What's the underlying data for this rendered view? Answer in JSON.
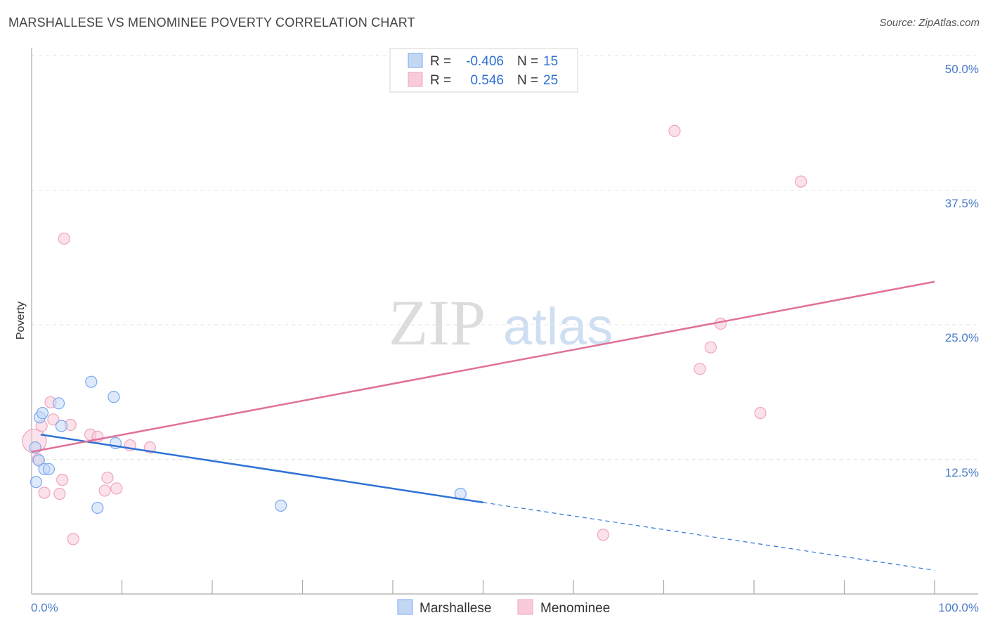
{
  "title": "MARSHALLESE VS MENOMINEE POVERTY CORRELATION CHART",
  "source": "Source: ZipAtlas.com",
  "watermark": {
    "zip": "ZIP",
    "atlas": "atlas"
  },
  "chart_data": {
    "type": "scatter",
    "title": "MARSHALLESE VS MENOMINEE POVERTY CORRELATION CHART",
    "xlabel": "",
    "ylabel": "Poverty",
    "xlim": [
      0,
      100
    ],
    "ylim": [
      0,
      50
    ],
    "x_tick_labels": [
      "0.0%",
      "100.0%"
    ],
    "y_ticks": [
      12.5,
      25.0,
      37.5,
      50.0
    ],
    "y_tick_labels": [
      "12.5%",
      "25.0%",
      "37.5%",
      "50.0%"
    ],
    "grid": true,
    "legend_position": "top-center",
    "series": [
      {
        "name": "Marshallese",
        "color": "#7aaaf0",
        "fill": "#c3d7f5",
        "line_color": "#2f72d6",
        "R": "-0.406",
        "N": "15",
        "points": [
          {
            "x": 0.4,
            "y": 13.6
          },
          {
            "x": 0.5,
            "y": 10.4
          },
          {
            "x": 0.8,
            "y": 12.4
          },
          {
            "x": 0.9,
            "y": 16.4
          },
          {
            "x": 1.2,
            "y": 16.8
          },
          {
            "x": 1.4,
            "y": 11.6
          },
          {
            "x": 1.9,
            "y": 11.6
          },
          {
            "x": 3.0,
            "y": 17.7
          },
          {
            "x": 3.3,
            "y": 15.6
          },
          {
            "x": 7.3,
            "y": 8.0
          },
          {
            "x": 6.6,
            "y": 19.7
          },
          {
            "x": 9.1,
            "y": 18.3
          },
          {
            "x": 9.3,
            "y": 14.0
          },
          {
            "x": 27.6,
            "y": 8.2
          },
          {
            "x": 47.5,
            "y": 9.3
          }
        ],
        "trend": {
          "x0": 1.0,
          "y0": 14.8,
          "x1": 50.0,
          "y1": 8.5,
          "x_dash_end": 100.0,
          "y_dash_end": 2.2
        }
      },
      {
        "name": "Menominee",
        "color": "#f2a3bd",
        "fill": "#f8cbd9",
        "line_color": "#e0709a",
        "R": "0.546",
        "N": "25",
        "points": [
          {
            "x": 0.3,
            "y": 14.2
          },
          {
            "x": 0.7,
            "y": 12.5
          },
          {
            "x": 1.1,
            "y": 15.6
          },
          {
            "x": 1.4,
            "y": 9.4
          },
          {
            "x": 2.1,
            "y": 17.8
          },
          {
            "x": 2.4,
            "y": 16.2
          },
          {
            "x": 3.1,
            "y": 9.3
          },
          {
            "x": 3.4,
            "y": 10.6
          },
          {
            "x": 3.6,
            "y": 33.0
          },
          {
            "x": 4.3,
            "y": 15.7
          },
          {
            "x": 4.6,
            "y": 5.1
          },
          {
            "x": 6.5,
            "y": 14.8
          },
          {
            "x": 7.3,
            "y": 14.6
          },
          {
            "x": 8.1,
            "y": 9.6
          },
          {
            "x": 8.4,
            "y": 10.8
          },
          {
            "x": 9.4,
            "y": 9.8
          },
          {
            "x": 10.9,
            "y": 13.8
          },
          {
            "x": 13.1,
            "y": 13.6
          },
          {
            "x": 63.3,
            "y": 5.5
          },
          {
            "x": 71.2,
            "y": 43.0
          },
          {
            "x": 74.0,
            "y": 20.9
          },
          {
            "x": 75.2,
            "y": 22.9
          },
          {
            "x": 76.3,
            "y": 25.1
          },
          {
            "x": 80.7,
            "y": 16.8
          },
          {
            "x": 85.2,
            "y": 38.3
          }
        ],
        "trend": {
          "x0": 0.0,
          "y0": 13.2,
          "x1": 100.0,
          "y1": 29.0
        }
      }
    ]
  }
}
